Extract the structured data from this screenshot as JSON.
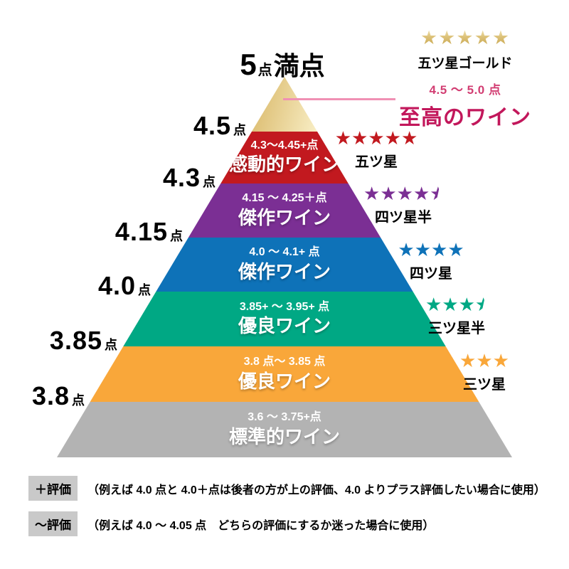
{
  "title": {
    "number": "5",
    "number_unit": "点",
    "suffix": "満点"
  },
  "apex": {
    "star_count": 5,
    "rating_label": "五ツ星ゴールド",
    "range": "4.5 ～ 5.0 点",
    "name": "至高のワイン"
  },
  "left_axis_labels": [
    {
      "value": "4.5",
      "unit": "点"
    },
    {
      "value": "4.3",
      "unit": "点"
    },
    {
      "value": "4.15",
      "unit": "点"
    },
    {
      "value": "4.0",
      "unit": "点"
    },
    {
      "value": "3.85",
      "unit": "点"
    },
    {
      "value": "3.8",
      "unit": "点"
    }
  ],
  "gold_band": {
    "start": "#9d732a",
    "mid": "#d2ab52",
    "highlight": "#f7ecc2",
    "end": "#b0832f"
  },
  "bands": [
    {
      "range": "4.3～4.45+点",
      "name": "感動的ワイン",
      "color": "#c2191f"
    },
    {
      "range": "4.15 ～ 4.25＋点",
      "name": "傑作ワイン",
      "color": "#7b2f94"
    },
    {
      "range": "4.0 ～ 4.1+ 点",
      "name": "傑作ワイン",
      "color": "#0e72b8"
    },
    {
      "range": "3.85+ ～ 3.95+ 点",
      "name": "優良ワイン",
      "color": "#00a884"
    },
    {
      "range": "3.8 点～ 3.85 点",
      "name": "優良ワイン",
      "color": "#f9a73a"
    },
    {
      "range": "3.6 ～ 3.75+点",
      "name": "標準的ワイン",
      "color": "#b3b3b3"
    }
  ],
  "ratings": [
    {
      "stars_full": 5,
      "stars_half": false,
      "label": "五ツ星",
      "color": "#c2191f"
    },
    {
      "stars_full": 4,
      "stars_half": true,
      "label": "四ツ星半",
      "color": "#7b2f94"
    },
    {
      "stars_full": 4,
      "stars_half": false,
      "label": "四ツ星",
      "color": "#0e72b8"
    },
    {
      "stars_full": 3,
      "stars_half": true,
      "label": "三ツ星半",
      "color": "#00a884"
    },
    {
      "stars_full": 3,
      "stars_half": false,
      "label": "三ツ星",
      "color": "#f9a73a"
    }
  ],
  "notes": [
    {
      "badge": "＋評価",
      "text": "（例えば 4.0 点と 4.0＋点は後者の方が上の評価、4.0 よりプラス評価したい場合に使用）"
    },
    {
      "badge": "～評価",
      "text": "（例えば 4.0 ～ 4.05 点　どちらの評価にするか迷った場合に使用）"
    }
  ],
  "icons": {
    "star": "★"
  },
  "colors": {
    "apex_name": "#c2175b",
    "apex_range": "#d23d72",
    "connector": "#f090b4",
    "note_badge_bg": "#c9c9c9"
  }
}
